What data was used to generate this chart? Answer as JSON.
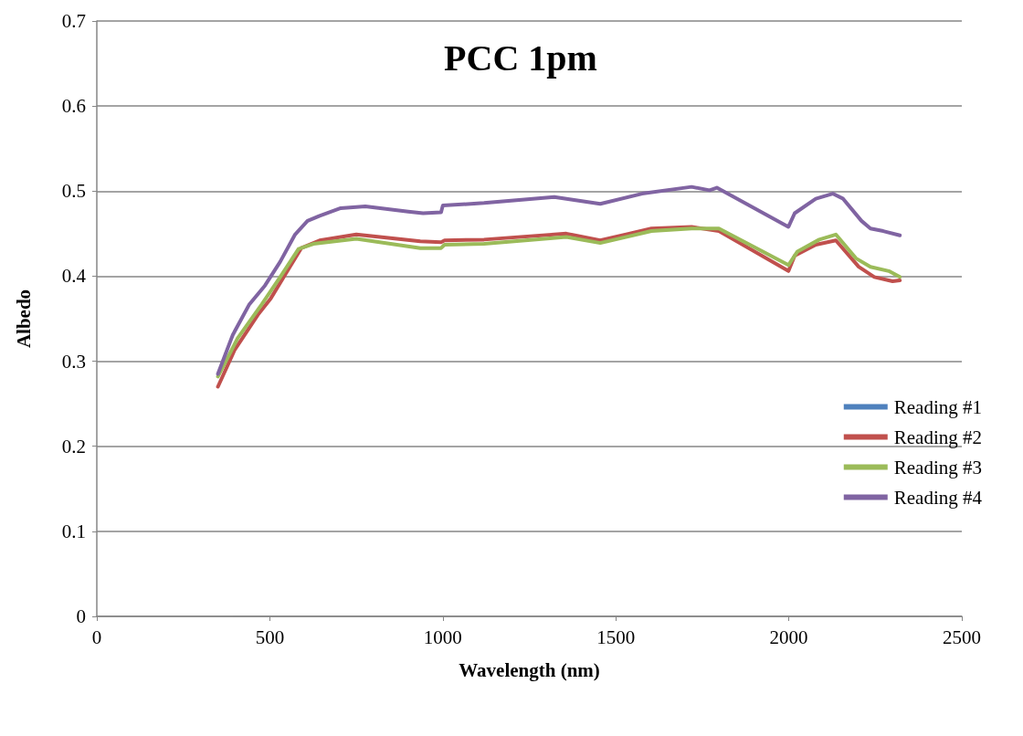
{
  "chart_data": {
    "type": "line",
    "title": "PCC 1pm",
    "xlabel": "Wavelength (nm)",
    "ylabel": "Albedo",
    "xlim": [
      0,
      2500
    ],
    "xticks": [
      0,
      500,
      1000,
      1500,
      2000,
      2500
    ],
    "ylim": [
      0,
      0.7
    ],
    "yticks": [
      0,
      0.1,
      0.2,
      0.3,
      0.4,
      0.5,
      0.6,
      0.7
    ],
    "grid": "y",
    "legend": "right",
    "marker": "none",
    "line_style": "solid",
    "series": [
      {
        "name": "Reading #1",
        "color": "#4f81bd"
      },
      {
        "name": "Reading #2",
        "color": "#c0504d",
        "x": [
          350,
          398,
          468,
          503,
          546,
          591,
          644,
          750,
          935,
          995,
          1005,
          1119,
          1357,
          1455,
          1603,
          1719,
          1798,
          1999,
          2017,
          2078,
          2136,
          2202,
          2247,
          2300,
          2321
        ],
        "values": [
          0.27,
          0.313,
          0.356,
          0.374,
          0.403,
          0.433,
          0.442,
          0.449,
          0.441,
          0.44,
          0.442,
          0.443,
          0.45,
          0.442,
          0.456,
          0.458,
          0.453,
          0.406,
          0.424,
          0.437,
          0.442,
          0.411,
          0.399,
          0.394,
          0.395
        ]
      },
      {
        "name": "Reading #3",
        "color": "#9bbb59",
        "x": [
          350,
          407,
          477,
          530,
          583,
          626,
          750,
          935,
          995,
          1005,
          1119,
          1357,
          1455,
          1603,
          1719,
          1798,
          1999,
          2025,
          2088,
          2136,
          2194,
          2236,
          2289,
          2321
        ],
        "values": [
          0.282,
          0.327,
          0.367,
          0.399,
          0.432,
          0.438,
          0.444,
          0.433,
          0.433,
          0.437,
          0.438,
          0.446,
          0.439,
          0.453,
          0.456,
          0.456,
          0.413,
          0.429,
          0.443,
          0.449,
          0.421,
          0.411,
          0.406,
          0.399
        ]
      },
      {
        "name": "Reading #4",
        "color": "#8064a2",
        "x": [
          350,
          393,
          441,
          486,
          530,
          573,
          609,
          644,
          705,
          776,
          900,
          943,
          995,
          1000,
          1119,
          1322,
          1455,
          1576,
          1719,
          1771,
          1792,
          1999,
          2017,
          2078,
          2127,
          2157,
          2210,
          2236,
          2273,
          2321
        ],
        "values": [
          0.285,
          0.331,
          0.367,
          0.389,
          0.417,
          0.449,
          0.465,
          0.471,
          0.48,
          0.482,
          0.476,
          0.474,
          0.475,
          0.483,
          0.486,
          0.493,
          0.485,
          0.497,
          0.505,
          0.501,
          0.504,
          0.458,
          0.474,
          0.491,
          0.497,
          0.491,
          0.465,
          0.456,
          0.453,
          0.448
        ]
      }
    ]
  }
}
